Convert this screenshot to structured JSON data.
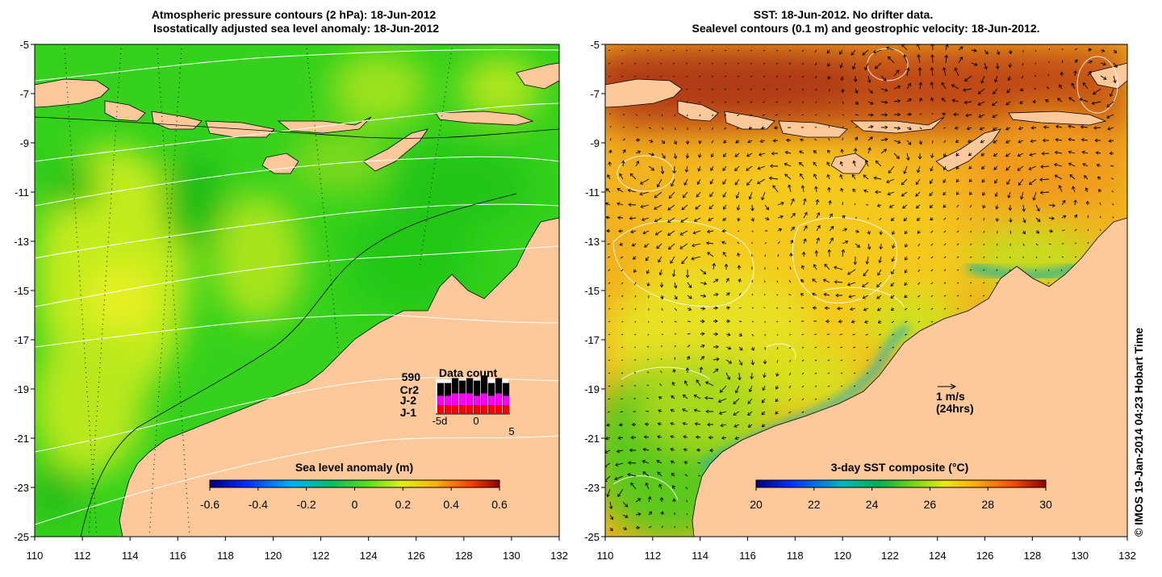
{
  "left_panel": {
    "title_line1": "Atmospheric pressure contours (2 hPa): 18-Jun-2012",
    "title_line2": "Isostatically adjusted sea level anomaly: 18-Jun-2012",
    "colorbar": {
      "title": "Sea level anomaly (m)",
      "ticks": [
        "-0.6",
        "-0.4",
        "-0.2",
        "0",
        "0.2",
        "0.4",
        "0.6"
      ],
      "range": [
        -0.6,
        0.6
      ]
    },
    "data_count": {
      "title": "Data count",
      "total": "590",
      "missions": [
        {
          "label": "Cr2",
          "color": "#000000"
        },
        {
          "label": "J-2",
          "color": "#ff00ff"
        },
        {
          "label": "J-1",
          "color": "#ff0000"
        }
      ],
      "axis_ticks": [
        "-5d",
        "0",
        "5"
      ],
      "bars": [
        {
          "j1": 3,
          "j2": 4,
          "cr2": 5
        },
        {
          "j1": 3,
          "j2": 4,
          "cr2": 5
        },
        {
          "j1": 3,
          "j2": 5,
          "cr2": 6
        },
        {
          "j1": 3,
          "j2": 5,
          "cr2": 5
        },
        {
          "j1": 3,
          "j2": 5,
          "cr2": 6
        },
        {
          "j1": 3,
          "j2": 4,
          "cr2": 6
        },
        {
          "j1": 3,
          "j2": 5,
          "cr2": 7
        },
        {
          "j1": 3,
          "j2": 4,
          "cr2": 5
        },
        {
          "j1": 3,
          "j2": 5,
          "cr2": 6
        },
        {
          "j1": 3,
          "j2": 4,
          "cr2": 5
        }
      ]
    }
  },
  "right_panel": {
    "title_line1": "SST: 18-Jun-2012. No drifter data.",
    "title_line2": "Sealevel contours (0.1 m) and geostrophic velocity: 18-Jun-2012.",
    "colorbar": {
      "title": "3-day SST composite (°C)",
      "ticks": [
        "20",
        "22",
        "24",
        "26",
        "28",
        "30"
      ],
      "range": [
        20,
        30
      ]
    },
    "velocity_scale": {
      "line1": "1 m/s",
      "line2": "(24hrs)"
    }
  },
  "axes": {
    "lon_ticks": [
      "110",
      "112",
      "114",
      "116",
      "118",
      "120",
      "122",
      "124",
      "126",
      "128",
      "130",
      "132"
    ],
    "lat_ticks": [
      "-5",
      "-7",
      "-9",
      "-11",
      "-13",
      "-15",
      "-17",
      "-19",
      "-21",
      "-23",
      "-25"
    ],
    "lon_range": [
      110,
      132
    ],
    "lat_range": [
      -25,
      -5
    ]
  },
  "credit": "© IMOS 19-Jan-2014 04:23 Hobart Time",
  "colors": {
    "land": "#fdc99a",
    "sla_base": "#35d11c",
    "sst_warm": "#f7a21f",
    "sst_hot": "#a83015"
  }
}
